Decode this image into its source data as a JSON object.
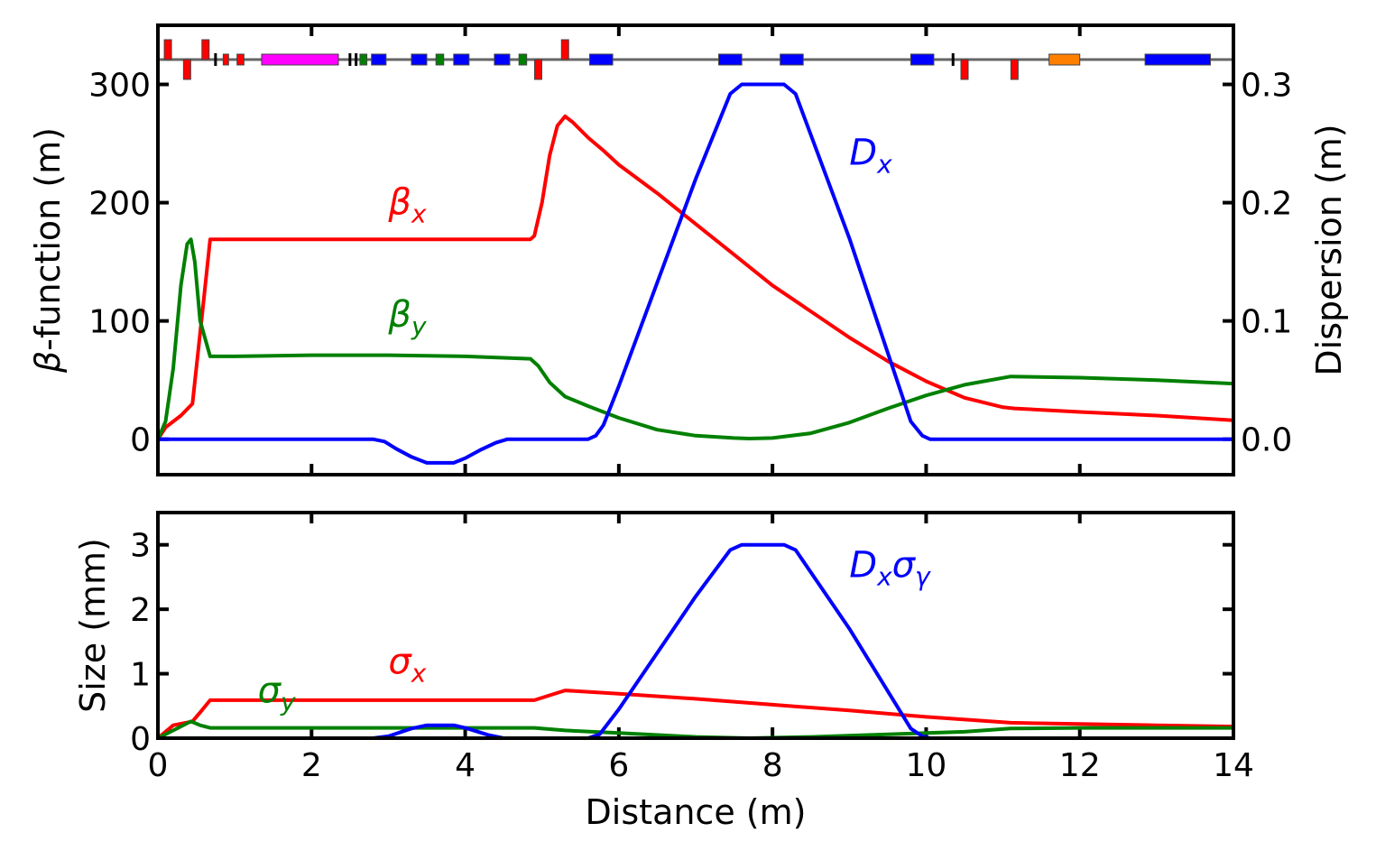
{
  "colors": {
    "beta_x": "#ff0000",
    "beta_y": "#008000",
    "disp": "#0000ff",
    "magenta": "#ff00ff",
    "orange": "#ff8000"
  },
  "chart_data": [
    {
      "type": "line",
      "title": "",
      "xlabel": "",
      "ylabel": "-function (m)",
      "ylabel_symbol": "β",
      "y2label": "Dispersion (m)",
      "xlim": [
        0,
        14
      ],
      "ylim": [
        -30,
        350
      ],
      "y2lim": [
        -0.03,
        0.35
      ],
      "yticks": [
        "0",
        "100",
        "200",
        "300"
      ],
      "y2ticks": [
        "0.0",
        "0.1",
        "0.2",
        "0.3"
      ],
      "series": [
        {
          "name": "βx",
          "symbol": "β",
          "sub": "x",
          "color": "#ff0000",
          "axis": "left",
          "x": [
            0,
            0.1,
            0.3,
            0.45,
            0.6,
            0.68,
            1.0,
            2.0,
            3.0,
            4.0,
            4.85,
            4.9,
            5.0,
            5.1,
            5.2,
            5.3,
            5.4,
            5.6,
            5.8,
            6.0,
            6.5,
            7.0,
            7.5,
            8.0,
            8.5,
            9.0,
            9.5,
            10.0,
            10.5,
            11.0,
            11.15,
            12.0,
            13.0,
            14.0
          ],
          "y": [
            0,
            10,
            20,
            30,
            120,
            169,
            169,
            169,
            169,
            169,
            169,
            172,
            200,
            240,
            265,
            273,
            268,
            255,
            244,
            232,
            208,
            182,
            156,
            130,
            108,
            86,
            66,
            49,
            35,
            27,
            26,
            23,
            20,
            16
          ]
        },
        {
          "name": "βy",
          "symbol": "β",
          "sub": "y",
          "color": "#008000",
          "axis": "left",
          "x": [
            0,
            0.1,
            0.2,
            0.3,
            0.38,
            0.43,
            0.48,
            0.55,
            0.68,
            1.0,
            2.0,
            3.0,
            4.0,
            4.85,
            4.95,
            5.1,
            5.3,
            5.6,
            6.0,
            6.5,
            7.0,
            7.5,
            7.7,
            8.0,
            8.5,
            9.0,
            9.5,
            10.0,
            10.5,
            11.1,
            12.0,
            13.0,
            14.0
          ],
          "y": [
            0,
            15,
            60,
            130,
            165,
            169,
            150,
            100,
            70,
            70,
            71,
            71,
            70,
            68,
            62,
            48,
            36,
            28,
            18,
            8,
            3,
            1,
            0.5,
            1,
            5,
            14,
            26,
            37,
            46,
            53,
            52,
            50,
            47
          ]
        },
        {
          "name": "Dx",
          "symbol": "D",
          "sub": "x",
          "color": "#0000ff",
          "axis": "right",
          "x": [
            0,
            1,
            2,
            2.8,
            2.95,
            3.1,
            3.3,
            3.5,
            3.85,
            4.0,
            4.2,
            4.4,
            4.55,
            4.7,
            5.0,
            5.6,
            5.7,
            5.8,
            6.0,
            7.0,
            7.45,
            7.6,
            8.0,
            8.15,
            8.3,
            9.0,
            9.8,
            9.95,
            10.05,
            10.2,
            11.0,
            12.0,
            13.0,
            14.0
          ],
          "y": [
            0,
            0,
            0,
            0,
            -0.002,
            -0.008,
            -0.015,
            -0.02,
            -0.02,
            -0.016,
            -0.009,
            -0.003,
            0,
            0,
            0,
            0,
            0.003,
            0.012,
            0.045,
            0.22,
            0.292,
            0.3,
            0.3,
            0.3,
            0.292,
            0.17,
            0.015,
            0.003,
            0,
            0,
            0,
            0,
            0,
            0
          ]
        }
      ],
      "labels": [
        {
          "series": "βx",
          "at": [
            3.0,
            190
          ]
        },
        {
          "series": "βy",
          "at": [
            3.0,
            95
          ]
        },
        {
          "series": "Dx",
          "at": [
            9.0,
            232
          ]
        }
      ]
    },
    {
      "type": "line",
      "title": "",
      "xlabel": "Distance (m)",
      "ylabel": "Size (mm)",
      "xlim": [
        0,
        14
      ],
      "ylim": [
        0,
        3.5
      ],
      "xticks": [
        "0",
        "2",
        "4",
        "6",
        "8",
        "10",
        "12",
        "14"
      ],
      "yticks": [
        "0",
        "1",
        "2",
        "3"
      ],
      "series": [
        {
          "name": "σx",
          "symbol": "σ",
          "sub": "x",
          "color": "#ff0000",
          "x": [
            0,
            0.2,
            0.45,
            0.55,
            0.68,
            1,
            2,
            3,
            4,
            4.9,
            5.3,
            6,
            7,
            8,
            9,
            10,
            11.1,
            12,
            13,
            14
          ],
          "y": [
            0,
            0.2,
            0.26,
            0.4,
            0.59,
            0.59,
            0.59,
            0.59,
            0.59,
            0.59,
            0.74,
            0.69,
            0.61,
            0.52,
            0.43,
            0.33,
            0.24,
            0.22,
            0.2,
            0.18
          ]
        },
        {
          "name": "σy",
          "symbol": "σ",
          "sub": "y",
          "color": "#008000",
          "x": [
            0,
            0.2,
            0.43,
            0.55,
            0.68,
            1,
            2,
            3,
            4,
            4.9,
            5.3,
            6,
            7,
            7.7,
            8.5,
            9.5,
            10.5,
            11.1,
            12,
            13,
            14
          ],
          "y": [
            0,
            0.12,
            0.26,
            0.2,
            0.16,
            0.16,
            0.16,
            0.16,
            0.16,
            0.16,
            0.12,
            0.08,
            0.02,
            0.0,
            0.02,
            0.06,
            0.1,
            0.15,
            0.16,
            0.16,
            0.16
          ]
        },
        {
          "name": "Dxσγ",
          "symbol": "D",
          "sub": "x",
          "symbol2": "σ",
          "sub2": "γ",
          "color": "#0000ff",
          "x": [
            0,
            2.8,
            3.0,
            3.3,
            3.5,
            3.85,
            4.0,
            4.3,
            4.5,
            5.6,
            5.75,
            6.0,
            7.0,
            7.45,
            7.6,
            8.0,
            8.15,
            8.3,
            9.0,
            9.8,
            9.95,
            10.05,
            14
          ],
          "y": [
            0,
            0,
            0.03,
            0.15,
            0.2,
            0.2,
            0.16,
            0.05,
            0,
            0,
            0.06,
            0.45,
            2.2,
            2.92,
            3.0,
            3.0,
            3.0,
            2.92,
            1.7,
            0.15,
            0.03,
            0,
            0
          ]
        }
      ],
      "labels": [
        {
          "series": "σx",
          "at": [
            3.0,
            1.0
          ]
        },
        {
          "series": "σy",
          "at": [
            1.3,
            0.55
          ]
        },
        {
          "series": "Dxσγ",
          "at": [
            9.0,
            2.5
          ]
        }
      ]
    }
  ],
  "lattice": [
    {
      "kind": "quad",
      "s": 0.13,
      "up": true,
      "color": "#ff0000"
    },
    {
      "kind": "quad",
      "s": 0.38,
      "up": false,
      "color": "#ff0000"
    },
    {
      "kind": "quad",
      "s": 0.62,
      "up": true,
      "color": "#ff0000"
    },
    {
      "kind": "marker",
      "s": 0.75,
      "color": "#000000"
    },
    {
      "kind": "bend",
      "s0": 0.85,
      "s1": 0.92,
      "color": "#ff0000"
    },
    {
      "kind": "bend",
      "s0": 1.03,
      "s1": 1.12,
      "color": "#ff0000"
    },
    {
      "kind": "bend",
      "s0": 1.35,
      "s1": 2.35,
      "color": "#ff00ff"
    },
    {
      "kind": "marker",
      "s": 2.5,
      "color": "#000000"
    },
    {
      "kind": "marker",
      "s": 2.58,
      "color": "#000000"
    },
    {
      "kind": "bend",
      "s0": 2.63,
      "s1": 2.72,
      "color": "#008000"
    },
    {
      "kind": "bend",
      "s0": 2.78,
      "s1": 2.97,
      "color": "#0000ff"
    },
    {
      "kind": "bend",
      "s0": 3.3,
      "s1": 3.5,
      "color": "#0000ff"
    },
    {
      "kind": "bend",
      "s0": 3.62,
      "s1": 3.72,
      "color": "#008000"
    },
    {
      "kind": "bend",
      "s0": 3.85,
      "s1": 4.05,
      "color": "#0000ff"
    },
    {
      "kind": "bend",
      "s0": 4.38,
      "s1": 4.58,
      "color": "#0000ff"
    },
    {
      "kind": "bend",
      "s0": 4.7,
      "s1": 4.8,
      "color": "#008000"
    },
    {
      "kind": "quad",
      "s": 4.95,
      "up": false,
      "color": "#ff0000"
    },
    {
      "kind": "quad",
      "s": 5.3,
      "up": true,
      "color": "#ff0000"
    },
    {
      "kind": "bend",
      "s0": 5.62,
      "s1": 5.92,
      "color": "#0000ff"
    },
    {
      "kind": "bend",
      "s0": 7.3,
      "s1": 7.6,
      "color": "#0000ff"
    },
    {
      "kind": "bend",
      "s0": 8.1,
      "s1": 8.4,
      "color": "#0000ff"
    },
    {
      "kind": "bend",
      "s0": 9.8,
      "s1": 10.1,
      "color": "#0000ff"
    },
    {
      "kind": "marker",
      "s": 10.35,
      "color": "#000000"
    },
    {
      "kind": "quad",
      "s": 10.5,
      "up": false,
      "color": "#ff0000"
    },
    {
      "kind": "quad",
      "s": 11.15,
      "up": false,
      "color": "#ff0000"
    },
    {
      "kind": "bend",
      "s0": 11.6,
      "s1": 12.0,
      "color": "#ff8000"
    },
    {
      "kind": "bend",
      "s0": 12.85,
      "s1": 13.7,
      "color": "#0000ff"
    }
  ]
}
